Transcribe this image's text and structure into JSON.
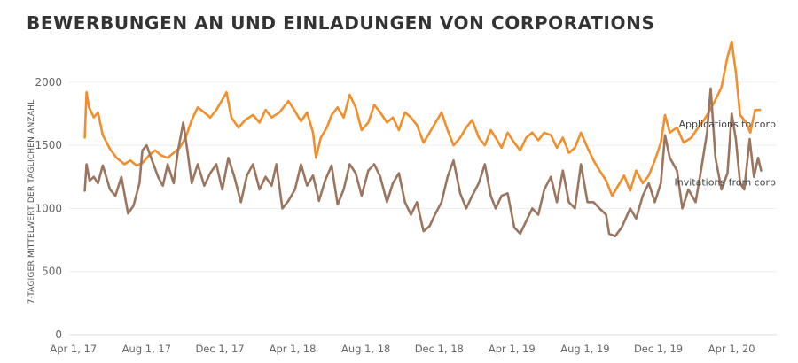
{
  "chart_data": {
    "type": "line",
    "title": "BEWERBUNGEN AN UND EINLADUNGEN VON CORPORATIONS",
    "ylabel": "7-TAGIGER MITTELWERT DER TÄGLICHEN ANZAHL",
    "xlabel": "",
    "ylim": [
      0,
      2300
    ],
    "yticks": [
      0,
      500,
      1000,
      1500,
      2000
    ],
    "xlim": [
      "2017-03-25",
      "2020-06-15"
    ],
    "xticks": [
      {
        "date": "2017-04-01",
        "label": "Apr 1, 17"
      },
      {
        "date": "2017-08-01",
        "label": "Aug 1, 17"
      },
      {
        "date": "2017-12-01",
        "label": "Dec 1, 17"
      },
      {
        "date": "2018-04-01",
        "label": "Apr 1, 18"
      },
      {
        "date": "2018-08-01",
        "label": "Aug 1, 18"
      },
      {
        "date": "2018-12-01",
        "label": "Dec 1, 18"
      },
      {
        "date": "2019-04-01",
        "label": "Apr 1, 19"
      },
      {
        "date": "2019-08-01",
        "label": "Aug 1, 19"
      },
      {
        "date": "2019-12-01",
        "label": "Dec 1, 19"
      },
      {
        "date": "2020-04-01",
        "label": "Apr 1, 20"
      }
    ],
    "grid": "horizontal",
    "series": [
      {
        "name": "Applications to corp",
        "color": "#f28e2b",
        "points": [
          [
            "2017-04-20",
            1560
          ],
          [
            "2017-04-23",
            1920
          ],
          [
            "2017-04-27",
            1800
          ],
          [
            "2017-05-05",
            1720
          ],
          [
            "2017-05-12",
            1760
          ],
          [
            "2017-05-20",
            1580
          ],
          [
            "2017-06-01",
            1470
          ],
          [
            "2017-06-12",
            1400
          ],
          [
            "2017-06-25",
            1350
          ],
          [
            "2017-07-05",
            1380
          ],
          [
            "2017-07-15",
            1340
          ],
          [
            "2017-07-25",
            1360
          ],
          [
            "2017-08-05",
            1420
          ],
          [
            "2017-08-15",
            1460
          ],
          [
            "2017-08-25",
            1420
          ],
          [
            "2017-09-05",
            1400
          ],
          [
            "2017-09-15",
            1440
          ],
          [
            "2017-09-25",
            1480
          ],
          [
            "2017-10-05",
            1560
          ],
          [
            "2017-10-15",
            1700
          ],
          [
            "2017-10-25",
            1800
          ],
          [
            "2017-11-05",
            1760
          ],
          [
            "2017-11-15",
            1720
          ],
          [
            "2017-11-25",
            1780
          ],
          [
            "2017-12-05",
            1860
          ],
          [
            "2017-12-12",
            1920
          ],
          [
            "2017-12-20",
            1720
          ],
          [
            "2018-01-01",
            1640
          ],
          [
            "2018-01-12",
            1700
          ],
          [
            "2018-01-25",
            1740
          ],
          [
            "2018-02-05",
            1680
          ],
          [
            "2018-02-15",
            1780
          ],
          [
            "2018-02-25",
            1720
          ],
          [
            "2018-03-10",
            1760
          ],
          [
            "2018-03-25",
            1850
          ],
          [
            "2018-04-05",
            1770
          ],
          [
            "2018-04-15",
            1690
          ],
          [
            "2018-04-25",
            1760
          ],
          [
            "2018-05-05",
            1600
          ],
          [
            "2018-05-10",
            1400
          ],
          [
            "2018-05-18",
            1560
          ],
          [
            "2018-05-28",
            1640
          ],
          [
            "2018-06-05",
            1740
          ],
          [
            "2018-06-15",
            1800
          ],
          [
            "2018-06-25",
            1720
          ],
          [
            "2018-07-05",
            1900
          ],
          [
            "2018-07-15",
            1800
          ],
          [
            "2018-07-25",
            1620
          ],
          [
            "2018-08-05",
            1680
          ],
          [
            "2018-08-15",
            1820
          ],
          [
            "2018-08-25",
            1760
          ],
          [
            "2018-09-05",
            1680
          ],
          [
            "2018-09-15",
            1720
          ],
          [
            "2018-09-25",
            1620
          ],
          [
            "2018-10-05",
            1760
          ],
          [
            "2018-10-15",
            1720
          ],
          [
            "2018-10-25",
            1660
          ],
          [
            "2018-11-05",
            1520
          ],
          [
            "2018-11-15",
            1600
          ],
          [
            "2018-11-25",
            1680
          ],
          [
            "2018-12-05",
            1760
          ],
          [
            "2018-12-15",
            1620
          ],
          [
            "2018-12-25",
            1500
          ],
          [
            "2019-01-05",
            1560
          ],
          [
            "2019-01-15",
            1640
          ],
          [
            "2019-01-25",
            1700
          ],
          [
            "2019-02-05",
            1560
          ],
          [
            "2019-02-15",
            1500
          ],
          [
            "2019-02-25",
            1620
          ],
          [
            "2019-03-05",
            1560
          ],
          [
            "2019-03-15",
            1480
          ],
          [
            "2019-03-25",
            1600
          ],
          [
            "2019-04-05",
            1520
          ],
          [
            "2019-04-15",
            1460
          ],
          [
            "2019-04-25",
            1560
          ],
          [
            "2019-05-05",
            1600
          ],
          [
            "2019-05-15",
            1540
          ],
          [
            "2019-05-25",
            1600
          ],
          [
            "2019-06-05",
            1580
          ],
          [
            "2019-06-15",
            1480
          ],
          [
            "2019-06-25",
            1560
          ],
          [
            "2019-07-05",
            1440
          ],
          [
            "2019-07-15",
            1480
          ],
          [
            "2019-07-25",
            1600
          ],
          [
            "2019-08-05",
            1480
          ],
          [
            "2019-08-15",
            1380
          ],
          [
            "2019-08-25",
            1300
          ],
          [
            "2019-09-05",
            1220
          ],
          [
            "2019-09-15",
            1100
          ],
          [
            "2019-09-25",
            1180
          ],
          [
            "2019-10-05",
            1260
          ],
          [
            "2019-10-15",
            1140
          ],
          [
            "2019-10-25",
            1300
          ],
          [
            "2019-11-05",
            1200
          ],
          [
            "2019-11-15",
            1260
          ],
          [
            "2019-11-25",
            1380
          ],
          [
            "2019-12-05",
            1520
          ],
          [
            "2019-12-12",
            1740
          ],
          [
            "2019-12-20",
            1600
          ],
          [
            "2020-01-01",
            1640
          ],
          [
            "2020-01-12",
            1520
          ],
          [
            "2020-01-25",
            1560
          ],
          [
            "2020-02-05",
            1640
          ],
          [
            "2020-02-15",
            1700
          ],
          [
            "2020-02-25",
            1780
          ],
          [
            "2020-03-05",
            1860
          ],
          [
            "2020-03-15",
            1960
          ],
          [
            "2020-03-25",
            2200
          ],
          [
            "2020-04-01",
            2320
          ],
          [
            "2020-04-08",
            2080
          ],
          [
            "2020-04-15",
            1740
          ],
          [
            "2020-04-25",
            1680
          ],
          [
            "2020-05-02",
            1600
          ],
          [
            "2020-05-10",
            1780
          ],
          [
            "2020-05-18",
            1780
          ]
        ]
      },
      {
        "name": "Invitations from corp",
        "color": "#9c755f",
        "points": [
          [
            "2017-04-20",
            1140
          ],
          [
            "2017-04-23",
            1350
          ],
          [
            "2017-04-28",
            1220
          ],
          [
            "2017-05-05",
            1250
          ],
          [
            "2017-05-12",
            1200
          ],
          [
            "2017-05-20",
            1340
          ],
          [
            "2017-06-01",
            1150
          ],
          [
            "2017-06-10",
            1100
          ],
          [
            "2017-06-20",
            1250
          ],
          [
            "2017-07-01",
            960
          ],
          [
            "2017-07-10",
            1020
          ],
          [
            "2017-07-20",
            1200
          ],
          [
            "2017-07-25",
            1460
          ],
          [
            "2017-08-01",
            1500
          ],
          [
            "2017-08-10",
            1380
          ],
          [
            "2017-08-20",
            1250
          ],
          [
            "2017-08-28",
            1180
          ],
          [
            "2017-09-05",
            1350
          ],
          [
            "2017-09-15",
            1200
          ],
          [
            "2017-09-22",
            1450
          ],
          [
            "2017-10-01",
            1680
          ],
          [
            "2017-10-08",
            1450
          ],
          [
            "2017-10-15",
            1200
          ],
          [
            "2017-10-25",
            1350
          ],
          [
            "2017-11-05",
            1180
          ],
          [
            "2017-11-15",
            1280
          ],
          [
            "2017-11-25",
            1350
          ],
          [
            "2017-12-05",
            1150
          ],
          [
            "2017-12-15",
            1400
          ],
          [
            "2017-12-25",
            1250
          ],
          [
            "2018-01-05",
            1050
          ],
          [
            "2018-01-15",
            1260
          ],
          [
            "2018-01-25",
            1350
          ],
          [
            "2018-02-05",
            1150
          ],
          [
            "2018-02-15",
            1250
          ],
          [
            "2018-02-25",
            1180
          ],
          [
            "2018-03-05",
            1350
          ],
          [
            "2018-03-15",
            1000
          ],
          [
            "2018-03-25",
            1060
          ],
          [
            "2018-04-05",
            1150
          ],
          [
            "2018-04-15",
            1350
          ],
          [
            "2018-04-25",
            1180
          ],
          [
            "2018-05-05",
            1260
          ],
          [
            "2018-05-15",
            1060
          ],
          [
            "2018-05-25",
            1220
          ],
          [
            "2018-06-05",
            1340
          ],
          [
            "2018-06-15",
            1030
          ],
          [
            "2018-06-25",
            1150
          ],
          [
            "2018-07-05",
            1350
          ],
          [
            "2018-07-15",
            1280
          ],
          [
            "2018-07-25",
            1100
          ],
          [
            "2018-08-05",
            1300
          ],
          [
            "2018-08-15",
            1350
          ],
          [
            "2018-08-25",
            1250
          ],
          [
            "2018-09-05",
            1050
          ],
          [
            "2018-09-15",
            1200
          ],
          [
            "2018-09-25",
            1280
          ],
          [
            "2018-10-05",
            1050
          ],
          [
            "2018-10-15",
            950
          ],
          [
            "2018-10-25",
            1050
          ],
          [
            "2018-11-05",
            820
          ],
          [
            "2018-11-15",
            860
          ],
          [
            "2018-11-25",
            960
          ],
          [
            "2018-12-05",
            1050
          ],
          [
            "2018-12-15",
            1250
          ],
          [
            "2018-12-25",
            1380
          ],
          [
            "2019-01-05",
            1120
          ],
          [
            "2019-01-15",
            1000
          ],
          [
            "2019-01-25",
            1100
          ],
          [
            "2019-02-05",
            1200
          ],
          [
            "2019-02-15",
            1350
          ],
          [
            "2019-02-25",
            1100
          ],
          [
            "2019-03-05",
            1000
          ],
          [
            "2019-03-15",
            1100
          ],
          [
            "2019-03-25",
            1120
          ],
          [
            "2019-04-05",
            850
          ],
          [
            "2019-04-15",
            800
          ],
          [
            "2019-04-25",
            900
          ],
          [
            "2019-05-05",
            1000
          ],
          [
            "2019-05-15",
            950
          ],
          [
            "2019-05-25",
            1150
          ],
          [
            "2019-06-05",
            1250
          ],
          [
            "2019-06-15",
            1050
          ],
          [
            "2019-06-25",
            1300
          ],
          [
            "2019-07-05",
            1050
          ],
          [
            "2019-07-15",
            1000
          ],
          [
            "2019-07-25",
            1350
          ],
          [
            "2019-08-05",
            1050
          ],
          [
            "2019-08-15",
            1050
          ],
          [
            "2019-08-25",
            1000
          ],
          [
            "2019-09-05",
            950
          ],
          [
            "2019-09-10",
            800
          ],
          [
            "2019-09-20",
            780
          ],
          [
            "2019-10-01",
            850
          ],
          [
            "2019-10-15",
            1000
          ],
          [
            "2019-10-25",
            920
          ],
          [
            "2019-11-05",
            1100
          ],
          [
            "2019-11-15",
            1200
          ],
          [
            "2019-11-25",
            1050
          ],
          [
            "2019-12-05",
            1200
          ],
          [
            "2019-12-12",
            1580
          ],
          [
            "2019-12-20",
            1400
          ],
          [
            "2020-01-01",
            1300
          ],
          [
            "2020-01-10",
            1000
          ],
          [
            "2020-01-20",
            1150
          ],
          [
            "2020-02-01",
            1050
          ],
          [
            "2020-02-10",
            1300
          ],
          [
            "2020-02-20",
            1600
          ],
          [
            "2020-02-26",
            1950
          ],
          [
            "2020-03-05",
            1400
          ],
          [
            "2020-03-15",
            1150
          ],
          [
            "2020-03-25",
            1280
          ],
          [
            "2020-04-01",
            1750
          ],
          [
            "2020-04-08",
            1550
          ],
          [
            "2020-04-15",
            1200
          ],
          [
            "2020-04-22",
            1150
          ],
          [
            "2020-05-01",
            1550
          ],
          [
            "2020-05-08",
            1250
          ],
          [
            "2020-05-15",
            1400
          ],
          [
            "2020-05-20",
            1300
          ]
        ]
      }
    ]
  }
}
